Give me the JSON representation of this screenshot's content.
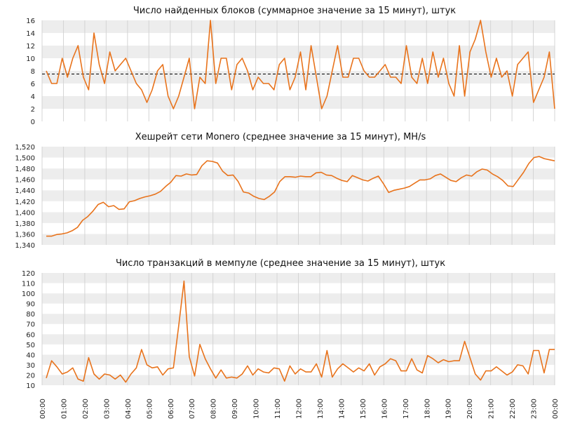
{
  "x_tick_labels": [
    "00:00",
    "01:00",
    "02:00",
    "03:00",
    "04:00",
    "05:00",
    "06:00",
    "07:00",
    "08:00",
    "09:00",
    "10:00",
    "11:00",
    "12:00",
    "13:00",
    "14:00",
    "15:00",
    "16:00",
    "17:00",
    "18:00",
    "19:00",
    "20:00",
    "21:00",
    "22:00",
    "23:00",
    "00:00"
  ],
  "chart_data": [
    {
      "type": "line",
      "title": "Число найденных блоков (суммарное значение за 15 минут), штук",
      "y_ticks": [
        "0",
        "2",
        "4",
        "6",
        "8",
        "10",
        "12",
        "14",
        "16"
      ],
      "ylim": [
        0,
        16
      ],
      "xlim": [
        "00:00",
        "24:00"
      ],
      "x_interval": "15 min",
      "grid": "alternating horizontal bands, vertical hour lines",
      "reference_line": {
        "value": 7.5,
        "style": "dashed",
        "color": "#000000"
      },
      "series": [
        {
          "color": "#e8731c",
          "values": [
            8,
            6,
            6,
            10,
            7,
            10,
            12,
            7,
            5,
            14,
            9,
            6,
            11,
            8,
            9,
            10,
            8,
            6,
            5,
            3,
            5,
            8,
            9,
            4,
            2,
            4,
            7,
            10,
            2,
            7,
            6,
            16,
            6,
            10,
            10,
            5,
            9,
            10,
            8,
            5,
            7,
            6,
            6,
            5,
            9,
            10,
            5,
            7,
            11,
            5,
            12,
            7,
            2,
            4,
            8,
            12,
            7,
            7,
            10,
            10,
            8,
            7,
            7,
            8,
            9,
            7,
            7,
            6,
            12,
            7,
            6,
            10,
            6,
            11,
            7,
            10,
            6,
            4,
            12,
            4,
            11,
            13,
            16,
            11,
            7,
            10,
            7,
            8,
            4,
            9,
            10,
            11,
            3,
            5,
            7,
            11,
            2
          ]
        }
      ]
    },
    {
      "type": "line",
      "title": "Хешрейт сети Monero (среднее значение за 15 минут), MH/s",
      "y_ticks": [
        "1,340",
        "1,360",
        "1,380",
        "1,400",
        "1,420",
        "1,440",
        "1,460",
        "1,480",
        "1,500",
        "1,520"
      ],
      "ylim": [
        1340,
        1520
      ],
      "xlim": [
        "00:00",
        "24:00"
      ],
      "x_interval": "15 min",
      "grid": "alternating horizontal bands, vertical hour lines",
      "series": [
        {
          "color": "#e8731c",
          "values": [
            1356,
            1356,
            1359,
            1360,
            1362,
            1366,
            1372,
            1385,
            1392,
            1402,
            1414,
            1418,
            1410,
            1412,
            1405,
            1406,
            1419,
            1421,
            1425,
            1428,
            1430,
            1433,
            1438,
            1447,
            1455,
            1467,
            1466,
            1470,
            1468,
            1469,
            1485,
            1494,
            1493,
            1490,
            1475,
            1467,
            1468,
            1456,
            1437,
            1435,
            1429,
            1425,
            1423,
            1429,
            1437,
            1456,
            1465,
            1465,
            1464,
            1466,
            1465,
            1465,
            1472,
            1473,
            1468,
            1467,
            1462,
            1458,
            1456,
            1467,
            1463,
            1459,
            1457,
            1462,
            1466,
            1452,
            1436,
            1440,
            1442,
            1444,
            1447,
            1453,
            1459,
            1459,
            1461,
            1467,
            1470,
            1464,
            1458,
            1456,
            1463,
            1468,
            1466,
            1474,
            1479,
            1477,
            1470,
            1465,
            1458,
            1448,
            1447,
            1460,
            1473,
            1489,
            1500,
            1502,
            1498,
            1496,
            1494
          ]
        }
      ]
    },
    {
      "type": "line",
      "title": "Число транзакций в мемпуле (среднее значение за 15 минут), штук",
      "y_ticks": [
        "10",
        "20",
        "30",
        "40",
        "50",
        "60",
        "70",
        "80",
        "90",
        "100",
        "110",
        "120"
      ],
      "ylim": [
        10,
        120
      ],
      "xlim": [
        "00:00",
        "24:00"
      ],
      "x_interval": "15 min",
      "grid": "alternating horizontal bands, vertical hour lines",
      "series": [
        {
          "color": "#e8731c",
          "values": [
            17,
            34,
            28,
            21,
            23,
            27,
            16,
            14,
            37,
            21,
            16,
            21,
            20,
            16,
            20,
            13,
            21,
            27,
            45,
            30,
            27,
            28,
            20,
            26,
            27,
            68,
            112,
            38,
            19,
            50,
            36,
            26,
            17,
            25,
            17,
            18,
            17,
            21,
            29,
            20,
            26,
            23,
            22,
            27,
            26,
            14,
            29,
            21,
            26,
            23,
            23,
            31,
            18,
            44,
            18,
            26,
            31,
            27,
            23,
            27,
            24,
            31,
            20,
            28,
            31,
            36,
            34,
            24,
            24,
            36,
            25,
            22,
            39,
            36,
            32,
            35,
            33,
            34,
            34,
            53,
            37,
            21,
            15,
            24,
            24,
            28,
            24,
            20,
            23,
            30,
            29,
            21,
            44,
            44,
            22,
            45,
            45
          ]
        }
      ]
    }
  ]
}
